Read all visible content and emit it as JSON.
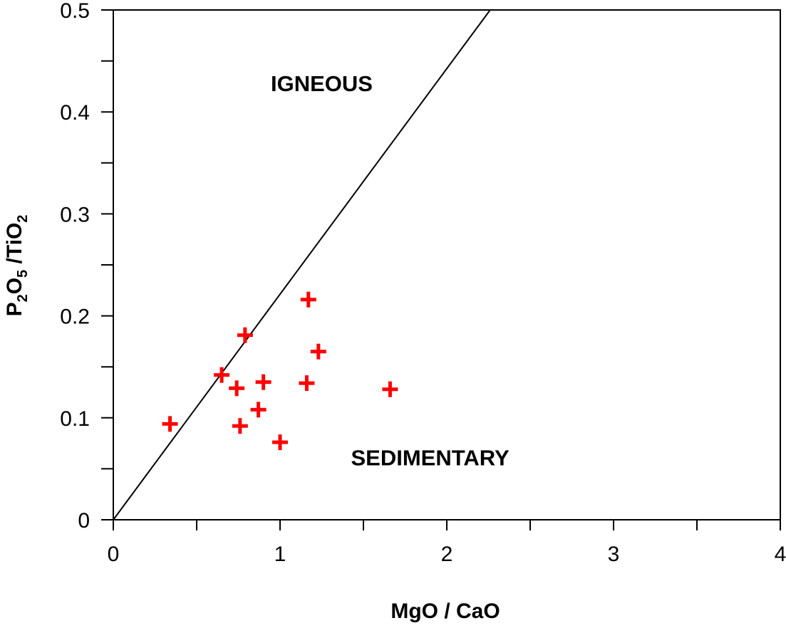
{
  "chart_data": {
    "type": "scatter",
    "xlabel": "MgO / CaO",
    "ylabel": {
      "parts": [
        {
          "text": "P",
          "sub": false
        },
        {
          "text": "2",
          "sub": true
        },
        {
          "text": "O",
          "sub": false
        },
        {
          "text": "5",
          "sub": true
        },
        {
          "text": " /TiO",
          "sub": false
        },
        {
          "text": "2",
          "sub": true
        }
      ]
    },
    "xlim": [
      0,
      4
    ],
    "ylim": [
      0,
      0.5
    ],
    "x_ticks": [
      0,
      1,
      2,
      3,
      4
    ],
    "x_tick_labels": [
      "0",
      "1",
      "2",
      "3",
      "4"
    ],
    "x_minor_ticks": [
      0.5,
      1.5,
      2.5,
      3.5
    ],
    "y_ticks": [
      0,
      0.1,
      0.2,
      0.3,
      0.4,
      0.5
    ],
    "y_tick_labels": [
      "0",
      "0.1",
      "0.2",
      "0.3",
      "0.4",
      "0.5"
    ],
    "y_minor_ticks": [
      0.05,
      0.15,
      0.25,
      0.35,
      0.45
    ],
    "grid": false,
    "boundary_line": {
      "x": [
        0,
        2.26
      ],
      "y": [
        0,
        0.5
      ]
    },
    "regions": [
      {
        "label": "IGNEOUS",
        "x": 1.25,
        "y": 0.428
      },
      {
        "label": "SEDIMENTARY",
        "x": 1.9,
        "y": 0.061
      }
    ],
    "series": [
      {
        "marker": "plus",
        "color": "#ff0000",
        "points": [
          {
            "x": 0.34,
            "y": 0.094
          },
          {
            "x": 0.65,
            "y": 0.142
          },
          {
            "x": 0.74,
            "y": 0.129
          },
          {
            "x": 0.76,
            "y": 0.092
          },
          {
            "x": 0.79,
            "y": 0.181
          },
          {
            "x": 0.87,
            "y": 0.108
          },
          {
            "x": 0.9,
            "y": 0.135
          },
          {
            "x": 1.0,
            "y": 0.076
          },
          {
            "x": 1.16,
            "y": 0.134
          },
          {
            "x": 1.17,
            "y": 0.216
          },
          {
            "x": 1.23,
            "y": 0.165
          },
          {
            "x": 1.66,
            "y": 0.128
          }
        ]
      }
    ]
  }
}
